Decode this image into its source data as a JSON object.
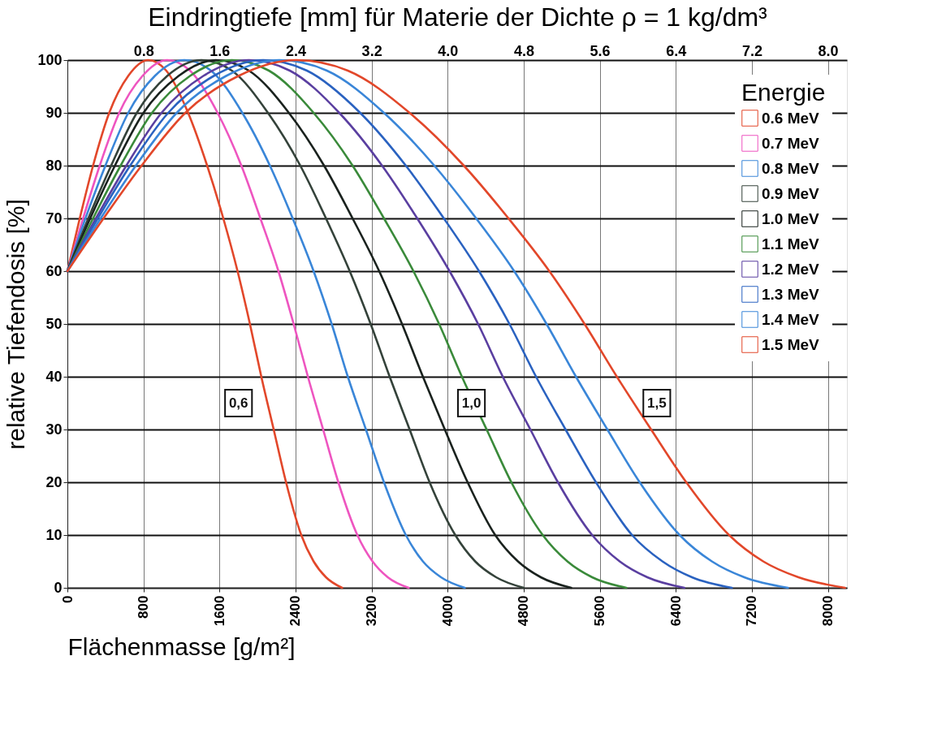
{
  "chart_data": {
    "type": "line",
    "x2label": "Eindringtiefe [mm] für Materie der Dichte ρ = 1 kg/dm³",
    "xlabel": "Flächenmasse [g/m²]",
    "ylabel": "relative Tiefendosis [%]",
    "legend_title": "Energie",
    "legend": "top right",
    "grid": true,
    "marker": "none",
    "line_style": "solid",
    "xlim": [
      0,
      8200
    ],
    "xticks": [
      0,
      800,
      1600,
      2400,
      3200,
      4000,
      4800,
      5600,
      6400,
      7200,
      8000
    ],
    "x2lim": [
      0,
      8.2
    ],
    "x2ticks": [
      {
        "value": 0.8,
        "label": "0.8"
      },
      {
        "value": 1.6,
        "label": "1.6"
      },
      {
        "value": 2.4,
        "label": "2.4"
      },
      {
        "value": 3.2,
        "label": "3.2"
      },
      {
        "value": 4.0,
        "label": "4.0"
      },
      {
        "value": 4.8,
        "label": "4.8"
      },
      {
        "value": 5.6,
        "label": "5.6"
      },
      {
        "value": 6.4,
        "label": "6.4"
      },
      {
        "value": 7.2,
        "label": "7.2"
      },
      {
        "value": 8.0,
        "label": "8.0"
      }
    ],
    "ylim": [
      0,
      100
    ],
    "yticks": [
      0,
      10,
      20,
      30,
      40,
      50,
      60,
      70,
      80,
      90,
      100
    ],
    "annotations": [
      {
        "text": "0,6",
        "x": 1800,
        "y": 35
      },
      {
        "text": "1,0",
        "x": 4250,
        "y": 35
      },
      {
        "text": "1,5",
        "x": 6200,
        "y": 35
      }
    ],
    "series": [
      {
        "name": "0.6  MeV",
        "color": "#e2472a",
        "x": [
          0,
          130,
          270,
          440,
          640,
          850,
          1040,
          1270,
          1470,
          1640,
          1790,
          1920,
          2040,
          2170,
          2300,
          2460,
          2590,
          2720,
          2890
        ],
        "values": [
          60,
          70,
          80,
          90,
          97,
          100,
          98,
          90,
          80,
          70,
          60,
          50,
          40,
          30,
          20,
          10,
          5,
          2,
          0
        ]
      },
      {
        "name": "0.7  MeV",
        "color": "#ee55c0",
        "x": [
          0,
          165,
          340,
          545,
          790,
          1050,
          1290,
          1580,
          1830,
          2030,
          2220,
          2380,
          2530,
          2690,
          2850,
          3050,
          3210,
          3370,
          3590
        ],
        "values": [
          60,
          70,
          80,
          90,
          97,
          100,
          98,
          90,
          80,
          70,
          60,
          50,
          40,
          30,
          20,
          10,
          5,
          2,
          0
        ]
      },
      {
        "name": "0.8  MeV",
        "color": "#3a86d8",
        "x": [
          0,
          190,
          400,
          640,
          920,
          1230,
          1510,
          1840,
          2130,
          2370,
          2590,
          2780,
          2950,
          3140,
          3330,
          3560,
          3740,
          3930,
          4180
        ],
        "values": [
          60,
          70,
          80,
          90,
          97,
          100,
          98,
          90,
          80,
          70,
          60,
          50,
          40,
          30,
          20,
          10,
          5,
          2,
          0
        ]
      },
      {
        "name": "0.9  MeV",
        "color": "#34423a",
        "x": [
          0,
          220,
          460,
          730,
          1050,
          1410,
          1730,
          2110,
          2450,
          2720,
          2970,
          3190,
          3390,
          3600,
          3810,
          4080,
          4290,
          4510,
          4800
        ],
        "values": [
          60,
          70,
          80,
          90,
          97,
          100,
          98,
          90,
          80,
          70,
          60,
          50,
          40,
          30,
          20,
          10,
          5,
          2,
          0
        ]
      },
      {
        "name": "1.0  MeV",
        "color": "#1a221e",
        "x": [
          0,
          240,
          500,
          800,
          1170,
          1560,
          1910,
          2330,
          2700,
          3000,
          3280,
          3520,
          3740,
          3970,
          4210,
          4500,
          4740,
          4980,
          5300
        ],
        "values": [
          60,
          70,
          80,
          90,
          97,
          100,
          98,
          90,
          80,
          70,
          60,
          50,
          40,
          30,
          20,
          10,
          5,
          2,
          0
        ]
      },
      {
        "name": "1.1  MeV",
        "color": "#3a8a3a",
        "x": [
          0,
          270,
          560,
          890,
          1290,
          1730,
          2120,
          2590,
          3000,
          3330,
          3640,
          3910,
          4150,
          4410,
          4670,
          5000,
          5260,
          5520,
          5880
        ],
        "values": [
          60,
          70,
          80,
          90,
          97,
          100,
          98,
          90,
          80,
          70,
          60,
          50,
          40,
          30,
          20,
          10,
          5,
          2,
          0
        ]
      },
      {
        "name": "1.2  MeV",
        "color": "#5a3fa0",
        "x": [
          0,
          300,
          620,
          990,
          1430,
          1910,
          2340,
          2860,
          3310,
          3680,
          4020,
          4320,
          4580,
          4870,
          5160,
          5520,
          5810,
          6100,
          6490
        ],
        "values": [
          60,
          70,
          80,
          90,
          97,
          100,
          98,
          90,
          80,
          70,
          60,
          50,
          40,
          30,
          20,
          10,
          5,
          2,
          0
        ]
      },
      {
        "name": "1.3  MeV",
        "color": "#2a62c0",
        "x": [
          0,
          320,
          660,
          1060,
          1540,
          2060,
          2520,
          3080,
          3560,
          3960,
          4330,
          4650,
          4930,
          5240,
          5560,
          5940,
          6260,
          6570,
          6990
        ],
        "values": [
          60,
          70,
          80,
          90,
          97,
          100,
          98,
          90,
          80,
          70,
          60,
          50,
          40,
          30,
          20,
          10,
          5,
          2,
          0
        ]
      },
      {
        "name": "1.4  MeV",
        "color": "#3a86d8",
        "x": [
          0,
          350,
          720,
          1150,
          1670,
          2230,
          2730,
          3330,
          3860,
          4300,
          4700,
          5040,
          5350,
          5680,
          6020,
          6440,
          6780,
          7120,
          7580
        ],
        "values": [
          60,
          70,
          80,
          90,
          97,
          100,
          98,
          90,
          80,
          70,
          60,
          50,
          40,
          30,
          20,
          10,
          5,
          2,
          0
        ]
      },
      {
        "name": "1.5  MeV",
        "color": "#e2472a",
        "x": [
          0,
          380,
          780,
          1240,
          1800,
          2410,
          2950,
          3600,
          4170,
          4640,
          5070,
          5440,
          5780,
          6140,
          6510,
          6960,
          7320,
          7690,
          8180
        ],
        "values": [
          60,
          70,
          80,
          90,
          97,
          100,
          98,
          90,
          80,
          70,
          60,
          50,
          40,
          30,
          20,
          10,
          5,
          2,
          0
        ]
      }
    ]
  }
}
